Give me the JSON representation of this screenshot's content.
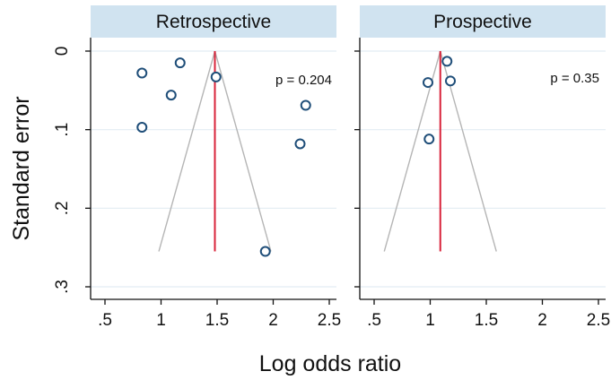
{
  "chart_data": {
    "type": "scatter",
    "xlabel": "Log odds ratio",
    "ylabel": "Standard error",
    "xlim": [
      0.5,
      2.5
    ],
    "ylim": [
      0,
      0.3
    ],
    "y_reversed": true,
    "xticks": [
      0.5,
      1,
      1.5,
      2,
      2.5
    ],
    "xtick_labels": [
      ".5",
      "1",
      "1.5",
      "2",
      "2.5"
    ],
    "yticks": [
      0,
      0.1,
      0.2,
      0.3
    ],
    "ytick_labels": [
      "0",
      ".1",
      ".2",
      ".3"
    ],
    "grid": "horizontal",
    "colors": {
      "strip_bg": "#d0e3f0",
      "point_stroke": "#1f4e79",
      "pooled_line": "#d9233a",
      "funnel_line": "#b5b5b5",
      "grid": "#e2ecf3"
    },
    "panels": [
      {
        "title": "Retrospective",
        "annotation": "p = 0.204",
        "pooled_estimate": 1.48,
        "funnel_max_se": 0.255,
        "points": [
          {
            "x": 0.83,
            "y": 0.028
          },
          {
            "x": 1.17,
            "y": 0.015
          },
          {
            "x": 1.09,
            "y": 0.056
          },
          {
            "x": 1.49,
            "y": 0.033
          },
          {
            "x": 0.83,
            "y": 0.097
          },
          {
            "x": 2.29,
            "y": 0.069
          },
          {
            "x": 2.24,
            "y": 0.118
          },
          {
            "x": 1.93,
            "y": 0.255
          }
        ]
      },
      {
        "title": "Prospective",
        "annotation": "p = 0.35",
        "pooled_estimate": 1.09,
        "funnel_max_se": 0.255,
        "points": [
          {
            "x": 1.15,
            "y": 0.013
          },
          {
            "x": 0.98,
            "y": 0.04
          },
          {
            "x": 1.18,
            "y": 0.038
          },
          {
            "x": 0.99,
            "y": 0.112
          }
        ]
      }
    ]
  }
}
